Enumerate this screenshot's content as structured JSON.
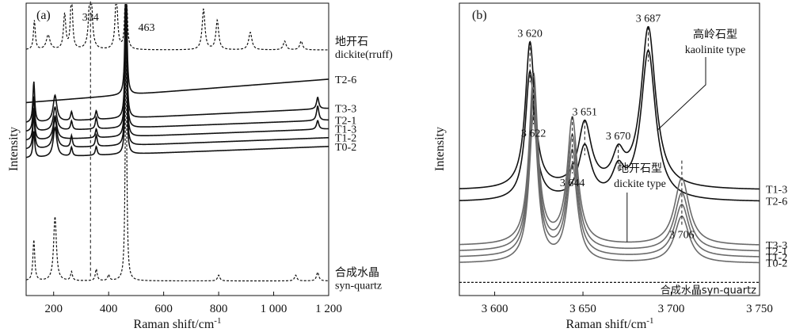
{
  "chart_data": [
    {
      "type": "line",
      "panel_label": "(a)",
      "xlabel": "Raman shift/cm",
      "xlabel_sup": "-1",
      "ylabel": "Intensity",
      "xlim": [
        100,
        1200
      ],
      "xticks": [
        200,
        400,
        600,
        800,
        1000,
        1200
      ],
      "xtick_labels": [
        "200",
        "400",
        "600",
        "800",
        "1 000",
        "1 200"
      ],
      "peak_labels": [
        {
          "x": 334,
          "text": "334"
        },
        {
          "x": 463,
          "text": "463"
        }
      ],
      "series": [
        {
          "name": "地开石",
          "name2": "dickite(rruff)",
          "style": "dotted",
          "baseline": 0.84,
          "peaks": [
            [
              130,
              0.1,
              4
            ],
            [
              180,
              0.05,
              8
            ],
            [
              240,
              0.12,
              5
            ],
            [
              265,
              0.22,
              4
            ],
            [
              334,
              0.34,
              5
            ],
            [
              428,
              0.2,
              5
            ],
            [
              463,
              0.45,
              3
            ],
            [
              745,
              0.14,
              6
            ],
            [
              795,
              0.1,
              6
            ],
            [
              915,
              0.06,
              7
            ],
            [
              1040,
              0.03,
              6
            ],
            [
              1100,
              0.03,
              6
            ]
          ]
        },
        {
          "name": "T2-6",
          "style": "solid",
          "baseline": 0.66,
          "rise": 0.08,
          "peaks": [
            [
              463,
              0.62,
              3
            ]
          ]
        },
        {
          "name": "T3-3",
          "style": "solid",
          "baseline": 0.59,
          "rise": 0.05,
          "peaks": [
            [
              128,
              0.14,
              4
            ],
            [
              205,
              0.09,
              8
            ],
            [
              265,
              0.03,
              4
            ],
            [
              355,
              0.03,
              4
            ],
            [
              463,
              0.63,
              3
            ],
            [
              1160,
              0.04,
              5
            ]
          ]
        },
        {
          "name": "T2-1",
          "style": "solid",
          "baseline": 0.56,
          "rise": 0.04,
          "peaks": [
            [
              128,
              0.12,
              4
            ],
            [
              205,
              0.08,
              8
            ],
            [
              265,
              0.03,
              4
            ],
            [
              355,
              0.04,
              4
            ],
            [
              463,
              0.6,
              3
            ],
            [
              1160,
              0.05,
              5
            ]
          ]
        },
        {
          "name": "T1-3",
          "style": "solid",
          "baseline": 0.53,
          "rise": 0.04,
          "peaks": [
            [
              128,
              0.11,
              4
            ],
            [
              205,
              0.08,
              8
            ],
            [
              355,
              0.03,
              4
            ],
            [
              463,
              0.58,
              3
            ],
            [
              1160,
              0.03,
              5
            ]
          ]
        },
        {
          "name": "T1-2",
          "style": "solid",
          "baseline": 0.5,
          "rise": 0.04,
          "peaks": [
            [
              128,
              0.12,
              4
            ],
            [
              205,
              0.1,
              8
            ],
            [
              265,
              0.04,
              4
            ],
            [
              355,
              0.04,
              4
            ],
            [
              463,
              0.56,
              3
            ]
          ]
        },
        {
          "name": "T0-2",
          "style": "solid",
          "baseline": 0.47,
          "rise": 0.04,
          "peaks": [
            [
              128,
              0.09,
              4
            ],
            [
              205,
              0.1,
              8
            ],
            [
              265,
              0.03,
              4
            ],
            [
              355,
              0.03,
              4
            ],
            [
              463,
              0.54,
              3
            ]
          ]
        },
        {
          "name": "合成水晶",
          "name2": "syn-quartz",
          "style": "dotted",
          "baseline": 0.05,
          "peaks": [
            [
              128,
              0.14,
              4
            ],
            [
              205,
              0.22,
              6
            ],
            [
              265,
              0.03,
              4
            ],
            [
              355,
              0.04,
              4
            ],
            [
              400,
              0.02,
              4
            ],
            [
              463,
              0.92,
              3
            ],
            [
              800,
              0.02,
              5
            ],
            [
              1080,
              0.02,
              5
            ],
            [
              1160,
              0.03,
              5
            ]
          ]
        }
      ]
    },
    {
      "type": "line",
      "panel_label": "(b)",
      "xlabel": "Raman shift/cm",
      "xlabel_sup": "-1",
      "ylabel": "Intensity",
      "xlim": [
        3580,
        3750
      ],
      "xticks": [
        3600,
        3650,
        3700,
        3750
      ],
      "xtick_labels": [
        "3 600",
        "3 650",
        "3 700",
        "3 750"
      ],
      "group_labels": [
        {
          "text": "高岭石型",
          "text2": "kaolinite type"
        },
        {
          "text": "地开石型",
          "text2": "dickite type"
        }
      ],
      "peak_labels_top": [
        {
          "x": 3620,
          "text": "3 620"
        },
        {
          "x": 3651,
          "text": "3 651"
        },
        {
          "x": 3670,
          "text": "3 670"
        },
        {
          "x": 3687,
          "text": "3 687"
        }
      ],
      "peak_labels_bottom": [
        {
          "x": 3622,
          "text": "3 622"
        },
        {
          "x": 3644,
          "text": "3 644"
        },
        {
          "x": 3706,
          "text": "3 706"
        }
      ],
      "series": [
        {
          "name": "T1-3",
          "color": "#111111",
          "baseline": 0.36,
          "peaks": [
            [
              3620,
              0.5,
              3.2
            ],
            [
              3651,
              0.22,
              4.5
            ],
            [
              3670,
              0.1,
              4
            ],
            [
              3687,
              0.55,
              5
            ]
          ]
        },
        {
          "name": "T2-6",
          "color": "#111111",
          "baseline": 0.32,
          "peaks": [
            [
              3620,
              0.44,
              3.2
            ],
            [
              3651,
              0.18,
              4.5
            ],
            [
              3670,
              0.09,
              4
            ],
            [
              3687,
              0.51,
              5
            ]
          ]
        },
        {
          "name": "T3-3",
          "color": "#6a6a6a",
          "baseline": 0.17,
          "peaks": [
            [
              3622,
              0.58,
              3.0
            ],
            [
              3644,
              0.43,
              3.5
            ],
            [
              3706,
              0.23,
              5
            ]
          ]
        },
        {
          "name": "T2-1",
          "color": "#6a6a6a",
          "baseline": 0.15,
          "peaks": [
            [
              3622,
              0.55,
              3.0
            ],
            [
              3644,
              0.39,
              3.5
            ],
            [
              3706,
              0.2,
              5
            ]
          ]
        },
        {
          "name": "T1-2",
          "color": "#6a6a6a",
          "baseline": 0.13,
          "peaks": [
            [
              3622,
              0.53,
              3.0
            ],
            [
              3644,
              0.36,
              3.5
            ],
            [
              3706,
              0.18,
              5
            ]
          ]
        },
        {
          "name": "T0-2",
          "color": "#6a6a6a",
          "baseline": 0.11,
          "peaks": [
            [
              3622,
              0.5,
              3.0
            ],
            [
              3644,
              0.33,
              3.5
            ],
            [
              3706,
              0.16,
              5
            ]
          ]
        },
        {
          "name": "合成水晶syn-quartz",
          "color": "#111111",
          "style": "dotted",
          "baseline": 0.045,
          "peaks": []
        }
      ]
    }
  ]
}
